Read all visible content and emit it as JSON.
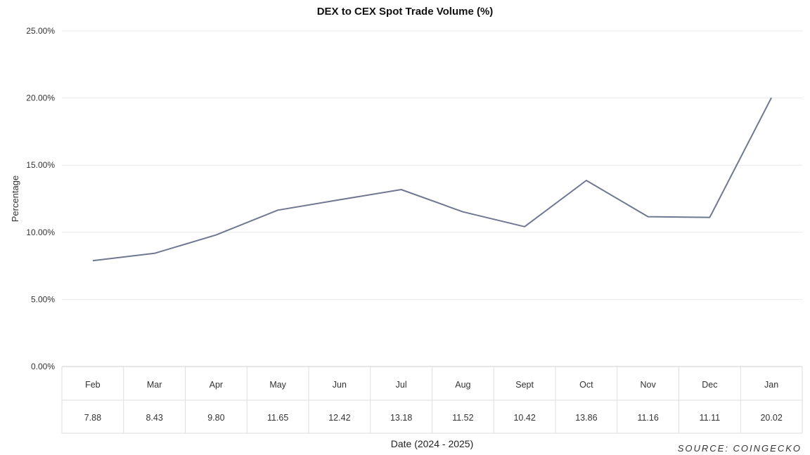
{
  "chart_data": {
    "type": "line",
    "title": "DEX to CEX Spot Trade Volume (%)",
    "ylabel": "Percentage",
    "xlabel": "Date (2024 - 2025)",
    "ylim": [
      0,
      25
    ],
    "yticks": [
      "0.00%",
      "5.00%",
      "10.00%",
      "15.00%",
      "20.00%",
      "25.00%"
    ],
    "ytick_values": [
      0,
      5,
      10,
      15,
      20,
      25
    ],
    "categories": [
      "Feb",
      "Mar",
      "Apr",
      "May",
      "Jun",
      "Jul",
      "Aug",
      "Sept",
      "Oct",
      "Nov",
      "Dec",
      "Jan"
    ],
    "values": [
      7.88,
      8.43,
      9.8,
      11.65,
      12.42,
      13.18,
      11.52,
      10.42,
      13.86,
      11.16,
      11.11,
      20.02
    ],
    "value_labels": [
      "7.88",
      "8.43",
      "9.80",
      "11.65",
      "12.42",
      "13.18",
      "11.52",
      "10.42",
      "13.86",
      "11.16",
      "11.11",
      "20.02"
    ],
    "grid": true,
    "line_color": "#6e7891"
  },
  "source": "SOURCE: COINGECKO"
}
